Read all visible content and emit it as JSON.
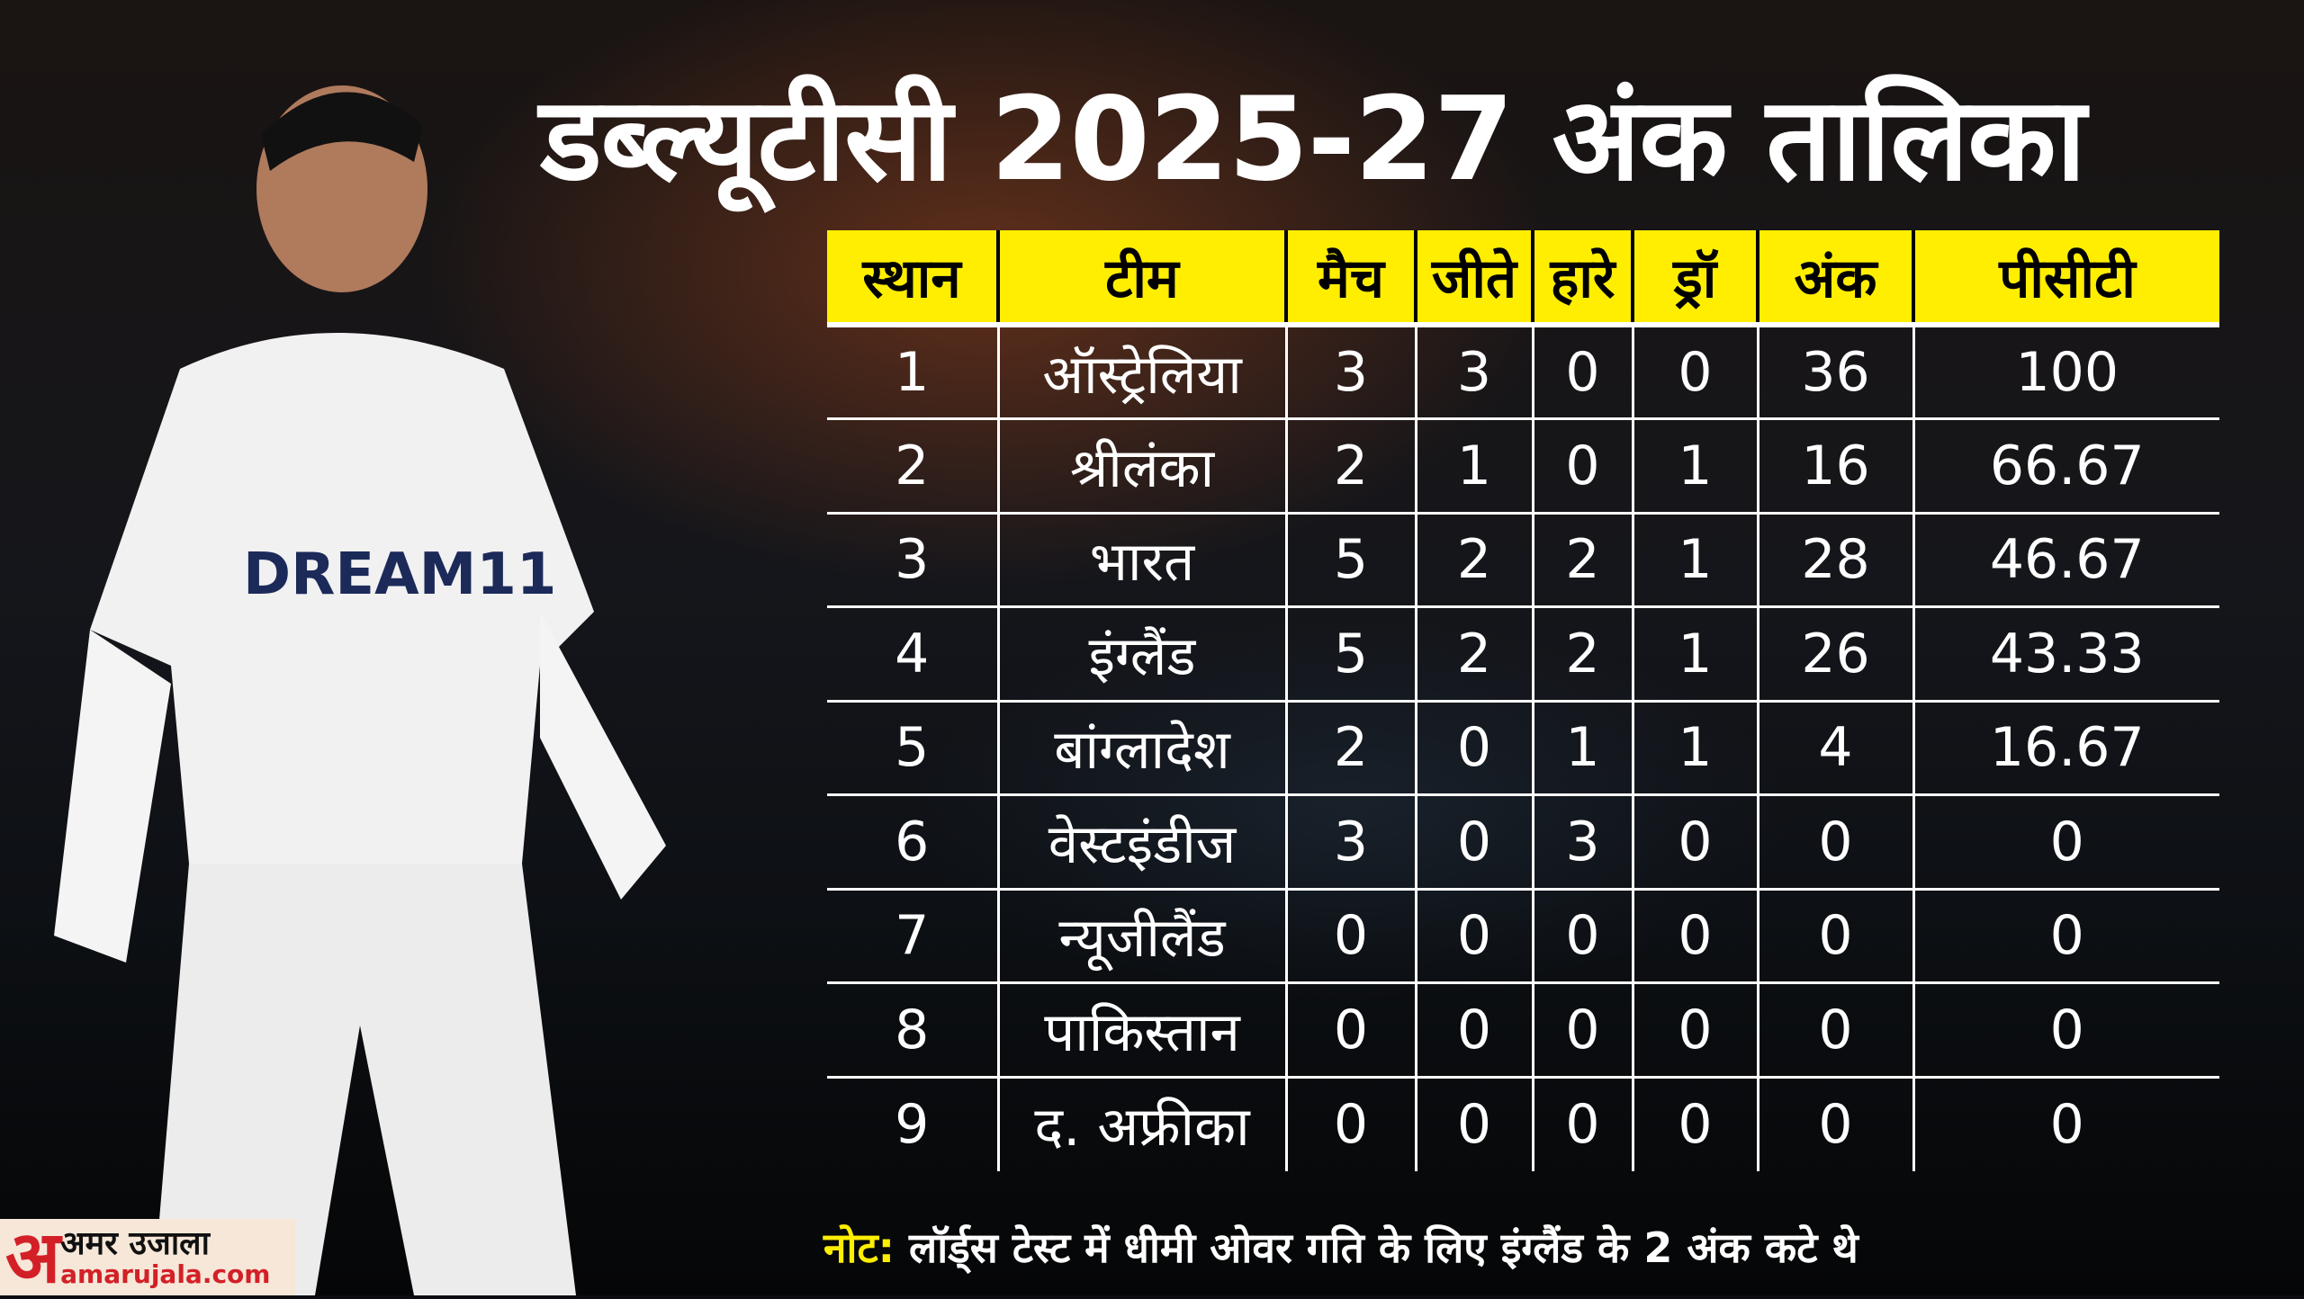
{
  "title": "डब्ल्यूटीसी 2025-27 अंक तालिका",
  "headers": [
    "स्थान",
    "टीम",
    "मैच",
    "जीते",
    "हारे",
    "ड्रॉ",
    "अंक",
    "पीसीटी"
  ],
  "rows": [
    [
      "1",
      "ऑस्ट्रेलिया",
      "3",
      "3",
      "0",
      "0",
      "36",
      "100"
    ],
    [
      "2",
      "श्रीलंका",
      "2",
      "1",
      "0",
      "1",
      "16",
      "66.67"
    ],
    [
      "3",
      "भारत",
      "5",
      "2",
      "2",
      "1",
      "28",
      "46.67"
    ],
    [
      "4",
      "इंग्लैंड",
      "5",
      "2",
      "2",
      "1",
      "26",
      "43.33"
    ],
    [
      "5",
      "बांग्लादेश",
      "2",
      "0",
      "1",
      "1",
      "4",
      "16.67"
    ],
    [
      "6",
      "वेस्टइंडीज",
      "3",
      "0",
      "3",
      "0",
      "0",
      "0"
    ],
    [
      "7",
      "न्यूजीलैंड",
      "0",
      "0",
      "0",
      "0",
      "0",
      "0"
    ],
    [
      "8",
      "पाकिस्तान",
      "0",
      "0",
      "0",
      "0",
      "0",
      "0"
    ],
    [
      "9",
      "द. अफ्रीका",
      "0",
      "0",
      "0",
      "0",
      "0",
      "0"
    ]
  ],
  "note": {
    "label": "नोट:",
    "text": " लॉर्ड्स टेस्ट में धीमी ओवर गति के लिए इंग्लैंड के 2 अंक कटे थे"
  },
  "logo": {
    "letter": "अ",
    "name": "अमर उजाला",
    "domain": "amarujala.com"
  },
  "jersey_text": "DREAM11",
  "colors": {
    "header": "#ffee00",
    "logo_red": "#d32027"
  }
}
